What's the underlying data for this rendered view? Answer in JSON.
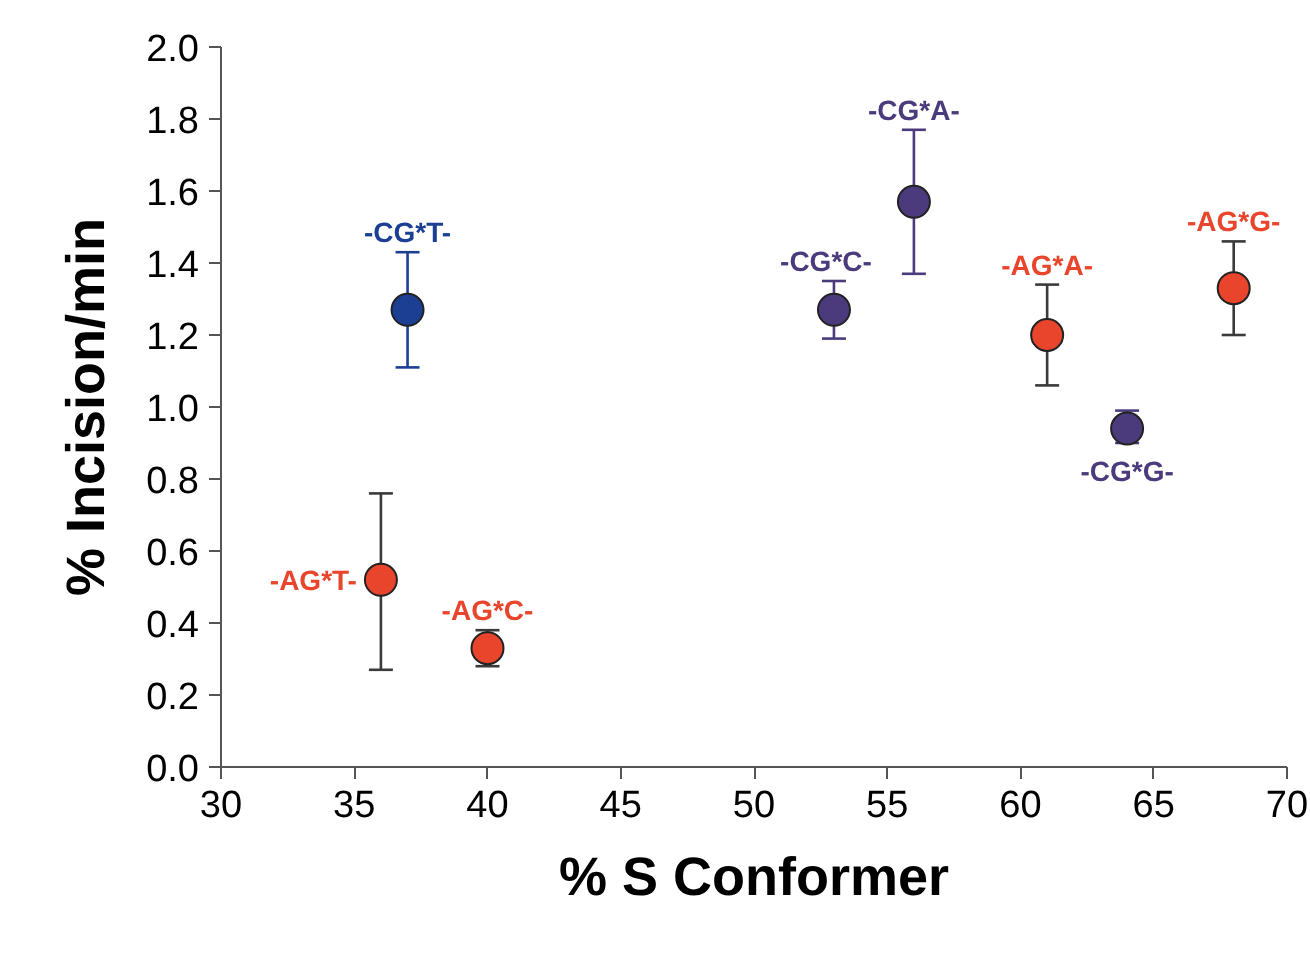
{
  "chart_data": {
    "type": "scatter",
    "xlabel": "% S Conformer",
    "ylabel": "% Incision/min",
    "xlim": [
      30,
      70
    ],
    "ylim": [
      0,
      2.0
    ],
    "xticks": [
      30,
      35,
      40,
      45,
      50,
      55,
      60,
      65,
      70
    ],
    "yticks": [
      {
        "value": 0,
        "label": "0.0"
      },
      {
        "value": 0.2,
        "label": "0.2"
      },
      {
        "value": 0.4,
        "label": "0.4"
      },
      {
        "value": 0.6,
        "label": "0.6"
      },
      {
        "value": 0.8,
        "label": "0.8"
      },
      {
        "value": 1.0,
        "label": "1.0"
      },
      {
        "value": 1.2,
        "label": "1.2"
      },
      {
        "value": 1.4,
        "label": "1.4"
      },
      {
        "value": 1.6,
        "label": "1.6"
      },
      {
        "value": 1.8,
        "label": "1.8"
      },
      {
        "value": 2.0,
        "label": "2.0"
      }
    ],
    "grid": false,
    "marker": "circle",
    "series": [
      {
        "name": "-CG*T-",
        "color": "#1c3f94",
        "x": [
          37
        ],
        "values": [
          1.27
        ],
        "errors": [
          [
            1.11,
            1.43
          ]
        ]
      },
      {
        "name": "-AG*T-",
        "color": "#e8452c",
        "x": [
          36
        ],
        "values": [
          0.52
        ],
        "errors": [
          [
            0.27,
            0.76
          ]
        ]
      },
      {
        "name": "-AG*C-",
        "color": "#e8452c",
        "x": [
          40
        ],
        "values": [
          0.33
        ],
        "errors": [
          [
            0.28,
            0.38
          ]
        ]
      },
      {
        "name": "-CG*C-",
        "color": "#4b3b7c",
        "x": [
          53
        ],
        "values": [
          1.27
        ],
        "errors": [
          [
            1.19,
            1.35
          ]
        ]
      },
      {
        "name": "-CG*A-",
        "color": "#4b3b7c",
        "x": [
          56
        ],
        "values": [
          1.57
        ],
        "errors": [
          [
            1.37,
            1.77
          ]
        ]
      },
      {
        "name": "-AG*A-",
        "color": "#e8452c",
        "x": [
          61
        ],
        "values": [
          1.2
        ],
        "errors": [
          [
            1.06,
            1.34
          ]
        ]
      },
      {
        "name": "-CG*G-",
        "color": "#4b3b7c",
        "x": [
          64
        ],
        "values": [
          0.94
        ],
        "errors": [
          [
            0.9,
            0.99
          ]
        ]
      },
      {
        "name": "-AG*G-",
        "color": "#e8452c",
        "x": [
          68
        ],
        "values": [
          1.33
        ],
        "errors": [
          [
            1.2,
            1.46
          ]
        ]
      }
    ]
  }
}
